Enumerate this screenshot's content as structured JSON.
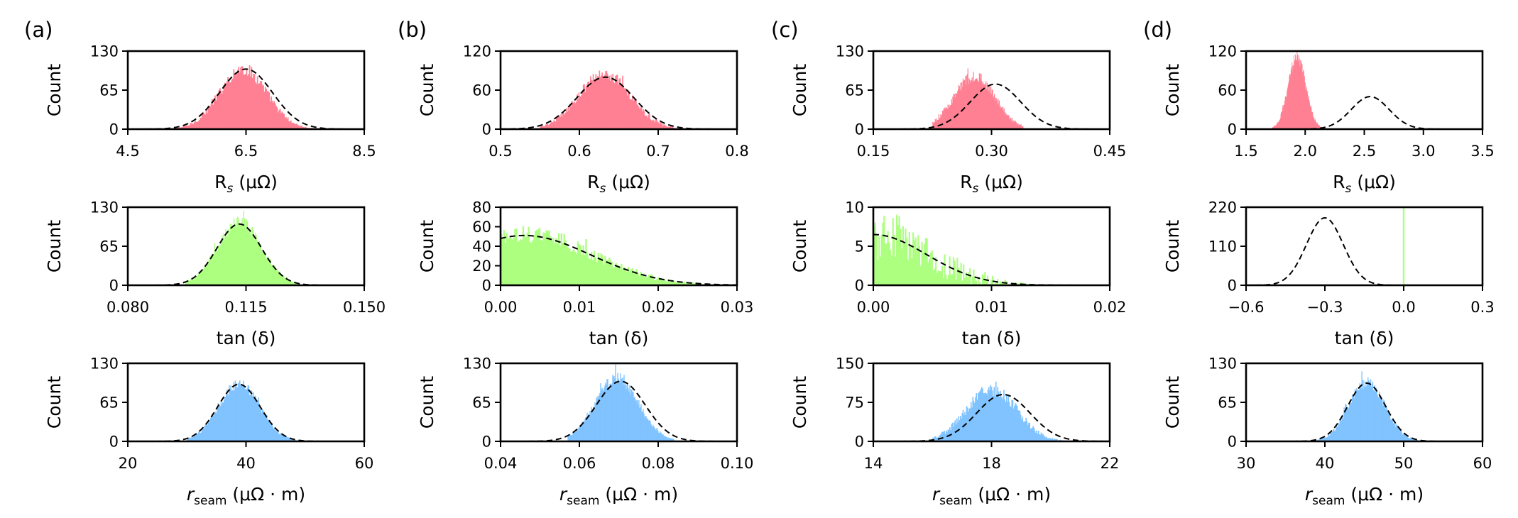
{
  "colors": {
    "rs": "#ff8093",
    "tan": "#adff80",
    "seam": "#80c3ff"
  },
  "chart_data": [
    {
      "type": "histogram",
      "panel_label": "(a)",
      "subplots": [
        {
          "quantity": "rs",
          "xlabel": "R",
          "xsub": "s",
          "xunit": " (μΩ)",
          "xlim": [
            4.5,
            8.5
          ],
          "xticks": [
            4.5,
            6.5,
            8.5
          ],
          "xtick_labels": [
            "4.5",
            "6.5",
            "8.5"
          ],
          "ylim": [
            0,
            130
          ],
          "yticks": [
            0,
            65,
            130
          ],
          "ytick_labels": [
            "0",
            "65",
            "130"
          ],
          "ylabel": "Count",
          "hist": {
            "mean": 6.45,
            "sd": 0.4,
            "peak": 100,
            "range": [
              5.3,
              7.8
            ],
            "noise": 0.12
          },
          "fit": {
            "mean": 6.5,
            "sd": 0.45,
            "peak": 100
          }
        },
        {
          "quantity": "tan",
          "xlabel": "tan (δ)",
          "xsub": "",
          "xunit": "",
          "xlim": [
            0.08,
            0.15
          ],
          "xticks": [
            0.08,
            0.115,
            0.15
          ],
          "xtick_labels": [
            "0.080",
            "0.115",
            "0.150"
          ],
          "ylim": [
            0,
            130
          ],
          "yticks": [
            0,
            65,
            130
          ],
          "ytick_labels": [
            "0",
            "65",
            "130"
          ],
          "ylabel": "Count",
          "hist": {
            "mean": 0.113,
            "sd": 0.0065,
            "peak": 105,
            "range": [
              0.097,
              0.13
            ],
            "noise": 0.1
          },
          "fit": {
            "mean": 0.113,
            "sd": 0.0066,
            "peak": 102
          }
        },
        {
          "quantity": "seam",
          "xlabel": "r",
          "xsub": "seam",
          "xunit": " (μΩ · m)",
          "xlim": [
            20,
            60
          ],
          "xticks": [
            20,
            40,
            60
          ],
          "xtick_labels": [
            "20",
            "40",
            "60"
          ],
          "ylim": [
            0,
            130
          ],
          "yticks": [
            0,
            65,
            130
          ],
          "ytick_labels": [
            "0",
            "65",
            "130"
          ],
          "ylabel": "Count",
          "hist": {
            "mean": 38.8,
            "sd": 3.5,
            "peak": 95,
            "range": [
              30,
              49
            ],
            "noise": 0.1
          },
          "fit": {
            "mean": 38.8,
            "sd": 3.6,
            "peak": 95
          }
        }
      ]
    },
    {
      "type": "histogram",
      "panel_label": "(b)",
      "subplots": [
        {
          "quantity": "rs",
          "xlabel": "R",
          "xsub": "s",
          "xunit": " (μΩ)",
          "xlim": [
            0.5,
            0.8
          ],
          "xticks": [
            0.5,
            0.6,
            0.7,
            0.8
          ],
          "xtick_labels": [
            "0.5",
            "0.6",
            "0.7",
            "0.8"
          ],
          "ylim": [
            0,
            120
          ],
          "yticks": [
            0,
            60,
            120
          ],
          "ytick_labels": [
            "0",
            "60",
            "120"
          ],
          "ylabel": "Count",
          "hist": {
            "mean": 0.632,
            "sd": 0.033,
            "peak": 85,
            "range": [
              0.55,
              0.72
            ],
            "noise": 0.12
          },
          "fit": {
            "mean": 0.633,
            "sd": 0.036,
            "peak": 80
          }
        },
        {
          "quantity": "tan",
          "xlabel": "tan (δ)",
          "xsub": "",
          "xunit": "",
          "xlim": [
            0.0,
            0.03
          ],
          "xticks": [
            0.0,
            0.01,
            0.02,
            0.03
          ],
          "xtick_labels": [
            "0.00",
            "0.01",
            "0.02",
            "0.03"
          ],
          "ylim": [
            0,
            80
          ],
          "yticks": [
            0,
            20,
            40,
            60,
            80
          ],
          "ytick_labels": [
            "0",
            "20",
            "40",
            "60",
            "80"
          ],
          "ylabel": "Count",
          "hist": {
            "mean": 0.003,
            "sd": 0.0085,
            "peak": 53,
            "range": [
              0.0,
              0.026
            ],
            "noise": 0.18
          },
          "fit": {
            "mean": 0.003,
            "sd": 0.0085,
            "peak": 51
          }
        },
        {
          "quantity": "seam",
          "xlabel": "r",
          "xsub": "seam",
          "xunit": " (μΩ · m)",
          "xlim": [
            0.04,
            0.1
          ],
          "xticks": [
            0.04,
            0.06,
            0.08,
            0.1
          ],
          "xtick_labels": [
            "0.04",
            "0.06",
            "0.08",
            "0.10"
          ],
          "ylim": [
            0,
            130
          ],
          "yticks": [
            0,
            65,
            130
          ],
          "ytick_labels": [
            "0",
            "65",
            "130"
          ],
          "ylabel": "Count",
          "hist": {
            "mean": 0.0695,
            "sd": 0.0055,
            "peak": 105,
            "range": [
              0.057,
              0.084
            ],
            "noise": 0.1
          },
          "fit": {
            "mean": 0.0705,
            "sd": 0.0062,
            "peak": 100
          }
        }
      ]
    },
    {
      "type": "histogram",
      "panel_label": "(c)",
      "subplots": [
        {
          "quantity": "rs",
          "xlabel": "R",
          "xsub": "s",
          "xunit": " (μΩ)",
          "xlim": [
            0.15,
            0.45
          ],
          "xticks": [
            0.15,
            0.3,
            0.45
          ],
          "xtick_labels": [
            "0.15",
            "0.30",
            "0.45"
          ],
          "ylim": [
            0,
            130
          ],
          "yticks": [
            0,
            65,
            130
          ],
          "ytick_labels": [
            "0",
            "65",
            "130"
          ],
          "ylabel": "Count",
          "hist": {
            "mean": 0.278,
            "sd": 0.026,
            "peak": 88,
            "range": [
              0.225,
              0.34
            ],
            "noise": 0.12
          },
          "fit": {
            "mean": 0.305,
            "sd": 0.032,
            "peak": 75
          }
        },
        {
          "quantity": "tan",
          "xlabel": "tan (δ)",
          "xsub": "",
          "xunit": "",
          "xlim": [
            0.0,
            0.02
          ],
          "xticks": [
            0.0,
            0.01,
            0.02
          ],
          "xtick_labels": [
            "0.00",
            "0.01",
            "0.02"
          ],
          "ylim": [
            0,
            10
          ],
          "yticks": [
            0,
            5,
            10
          ],
          "ytick_labels": [
            "0",
            "5",
            "10"
          ],
          "ylabel": "Count",
          "hist": {
            "mean": 0.0,
            "sd": 0.0045,
            "peak": 6.5,
            "range": [
              0.0,
              0.016
            ],
            "noise": 0.55
          },
          "fit": {
            "mean": 0.0,
            "sd": 0.0045,
            "peak": 6.5
          }
        },
        {
          "quantity": "seam",
          "xlabel": "r",
          "xsub": "seam",
          "xunit": " (μΩ · m)",
          "xlim": [
            14,
            22
          ],
          "xticks": [
            14,
            18,
            22
          ],
          "xtick_labels": [
            "14",
            "18",
            "22"
          ],
          "ylim": [
            0,
            150
          ],
          "yticks": [
            0,
            75,
            150
          ],
          "ytick_labels": [
            "0",
            "75",
            "150"
          ],
          "ylabel": "Count",
          "hist": {
            "mean": 18.0,
            "sd": 0.85,
            "peak": 100,
            "range": [
              16.0,
              20.5
            ],
            "noise": 0.14
          },
          "fit": {
            "mean": 18.4,
            "sd": 0.9,
            "peak": 90
          }
        }
      ]
    },
    {
      "type": "histogram",
      "panel_label": "(d)",
      "subplots": [
        {
          "quantity": "rs",
          "xlabel": "R",
          "xsub": "s",
          "xunit": " (μΩ)",
          "xlim": [
            1.5,
            3.5
          ],
          "xticks": [
            1.5,
            2.0,
            2.5,
            3.0,
            3.5
          ],
          "xtick_labels": [
            "1.5",
            "2.0",
            "2.5",
            "3.0",
            "3.5"
          ],
          "ylim": [
            0,
            120
          ],
          "yticks": [
            0,
            60,
            120
          ],
          "ytick_labels": [
            "0",
            "60",
            "120"
          ],
          "ylabel": "Count",
          "hist": {
            "mean": 1.93,
            "sd": 0.075,
            "peak": 110,
            "range": [
              1.72,
              2.15
            ],
            "noise": 0.1
          },
          "fit": {
            "mean": 2.55,
            "sd": 0.16,
            "peak": 50
          }
        },
        {
          "quantity": "tan",
          "xlabel": "tan (δ)",
          "xsub": "",
          "xunit": "",
          "xlim": [
            -0.6,
            0.3
          ],
          "xticks": [
            -0.6,
            -0.3,
            0.0,
            0.3
          ],
          "xtick_labels": [
            "−0.6",
            "−0.3",
            "0.0",
            "0.3"
          ],
          "ylim": [
            0,
            220
          ],
          "yticks": [
            0,
            110,
            220
          ],
          "ytick_labels": [
            "0",
            "110",
            "220"
          ],
          "ylabel": "Count",
          "hist": {
            "spike": 0.0,
            "peak": 220
          },
          "fit": {
            "mean": -0.3,
            "sd": 0.07,
            "peak": 190
          }
        },
        {
          "quantity": "seam",
          "xlabel": "r",
          "xsub": "seam",
          "xunit": " (μΩ · m)",
          "xlim": [
            30,
            60
          ],
          "xticks": [
            30,
            40,
            50,
            60
          ],
          "xtick_labels": [
            "30",
            "40",
            "50",
            "60"
          ],
          "ylim": [
            0,
            130
          ],
          "yticks": [
            0,
            65,
            130
          ],
          "ytick_labels": [
            "0",
            "65",
            "130"
          ],
          "ylabel": "Count",
          "hist": {
            "mean": 45.3,
            "sd": 2.3,
            "peak": 98,
            "range": [
              39,
              52
            ],
            "noise": 0.1
          },
          "fit": {
            "mean": 45.3,
            "sd": 2.4,
            "peak": 97
          }
        }
      ]
    }
  ]
}
